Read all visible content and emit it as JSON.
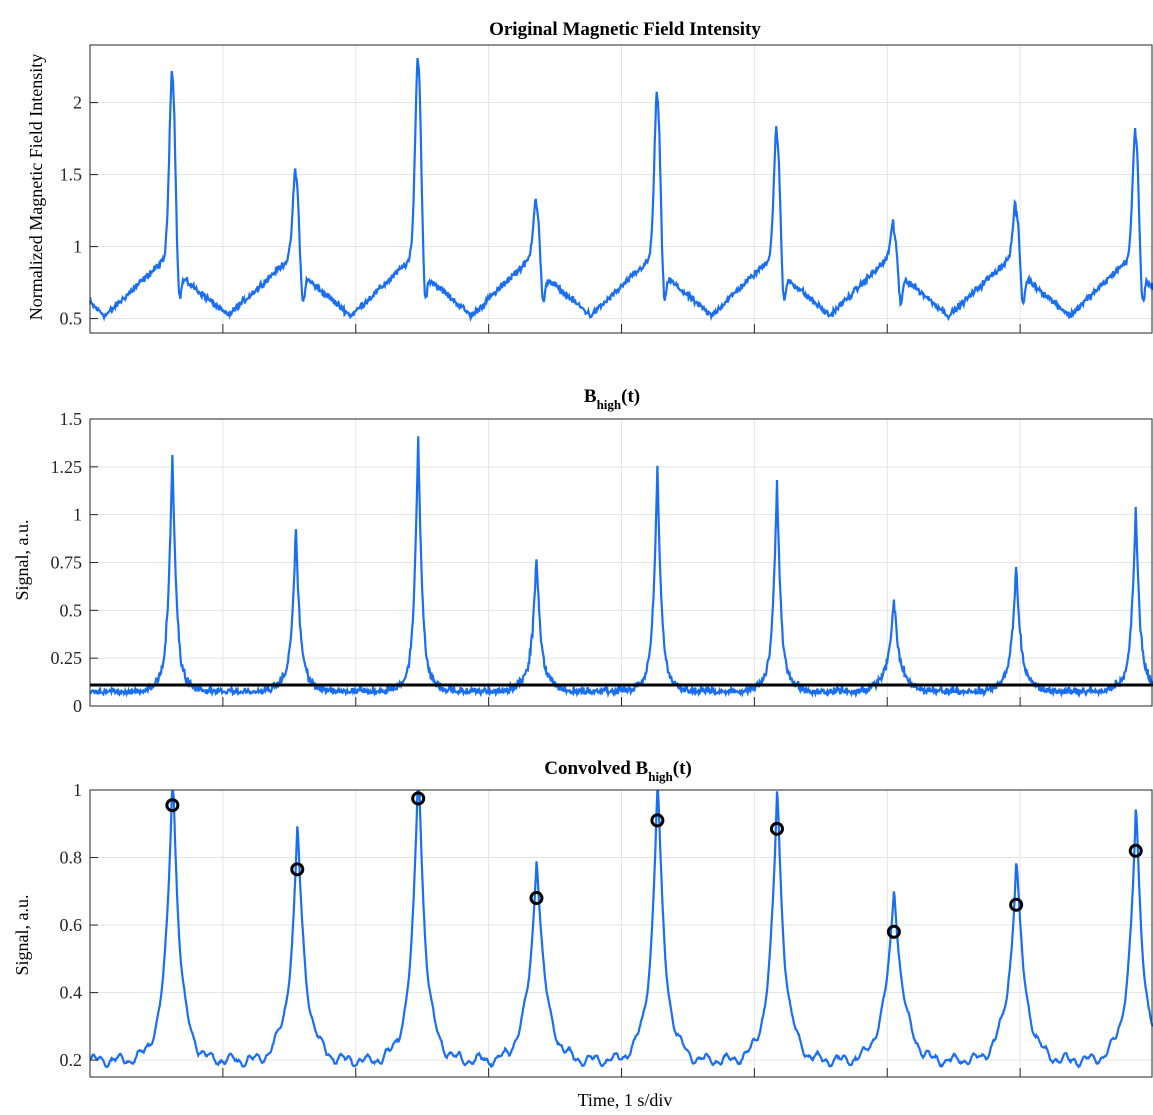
{
  "chart_data": [
    {
      "type": "line",
      "title": "Original Magnetic Field Intensity",
      "ylabel": "Normalized Magnetic Field Intensity",
      "xlabel": "",
      "ylim": [
        0.4,
        2.4
      ],
      "xlim": [
        0,
        8
      ],
      "yticks": [
        0.5,
        1,
        1.5,
        2
      ],
      "ytick_labels": [
        "0.5",
        "1",
        "1.5",
        "2"
      ],
      "xticks": [
        1,
        2,
        3,
        4,
        5,
        6,
        7
      ],
      "grid": true,
      "line_color": "#1a6ef2",
      "beats": [
        {
          "t": 0.62,
          "peak": 2.26
        },
        {
          "t": 1.55,
          "peak": 1.56
        },
        {
          "t": 2.47,
          "peak": 2.35
        },
        {
          "t": 3.36,
          "peak": 1.36
        },
        {
          "t": 4.27,
          "peak": 2.1
        },
        {
          "t": 5.17,
          "peak": 1.85
        },
        {
          "t": 6.05,
          "peak": 1.18
        },
        {
          "t": 6.97,
          "peak": 1.32
        },
        {
          "t": 7.87,
          "peak": 1.84
        }
      ],
      "baseline": {
        "high": 0.92,
        "low": 0.52
      }
    },
    {
      "type": "line",
      "title": "B",
      "title_sub": "high",
      "title_suffix": "(t)",
      "ylabel": "Signal, a.u.",
      "xlabel": "",
      "ylim": [
        0,
        1.5
      ],
      "xlim": [
        0,
        8
      ],
      "yticks": [
        0,
        0.25,
        0.5,
        0.75,
        1,
        1.25,
        1.5
      ],
      "ytick_labels": [
        "0",
        "0.25",
        "0.5",
        "0.75",
        "1",
        "1.25",
        "1.5"
      ],
      "xticks": [
        1,
        2,
        3,
        4,
        5,
        6,
        7
      ],
      "grid": true,
      "line_color": "#1a6ef2",
      "threshold": 0.11,
      "threshold_color": "#000000",
      "beats": [
        {
          "t": 0.62,
          "peak": 1.22
        },
        {
          "t": 1.55,
          "peak": 0.8
        },
        {
          "t": 2.47,
          "peak": 1.29
        },
        {
          "t": 3.36,
          "peak": 0.67
        },
        {
          "t": 4.27,
          "peak": 1.13
        },
        {
          "t": 5.17,
          "peak": 1.05
        },
        {
          "t": 6.05,
          "peak": 0.45
        },
        {
          "t": 6.97,
          "peak": 0.61
        },
        {
          "t": 7.87,
          "peak": 0.91
        }
      ]
    },
    {
      "type": "line",
      "title": "Convolved B",
      "title_sub": "high",
      "title_suffix": "(t)",
      "ylabel": "Signal, a.u.",
      "xlabel": "Time, 1 s/div",
      "ylim": [
        0.15,
        1.0
      ],
      "xlim": [
        0,
        8
      ],
      "yticks": [
        0.2,
        0.4,
        0.6,
        0.8,
        1
      ],
      "ytick_labels": [
        "0.2",
        "0.4",
        "0.6",
        "0.8",
        "1"
      ],
      "xticks": [
        1,
        2,
        3,
        4,
        5,
        6,
        7
      ],
      "grid": true,
      "line_color": "#1a6ef2",
      "marker_color": "#000000",
      "peaks": [
        {
          "t": 0.62,
          "y": 0.955
        },
        {
          "t": 1.56,
          "y": 0.765
        },
        {
          "t": 2.47,
          "y": 0.975
        },
        {
          "t": 3.36,
          "y": 0.68
        },
        {
          "t": 4.27,
          "y": 0.91
        },
        {
          "t": 5.17,
          "y": 0.885
        },
        {
          "t": 6.05,
          "y": 0.58
        },
        {
          "t": 6.97,
          "y": 0.66
        },
        {
          "t": 7.87,
          "y": 0.82
        }
      ]
    }
  ]
}
